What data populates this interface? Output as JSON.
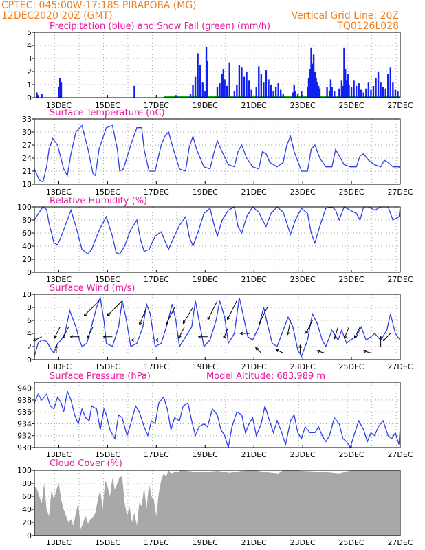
{
  "header": {
    "line1": "CPTEC:   045:00W-17:18S   PIRAPORA (MG)",
    "line2": "12DEC2020 20Z (GMT)",
    "right1": "Vertical Grid Line: 20Z",
    "right2": "TQ0126L028"
  },
  "colors": {
    "header": "#f08020",
    "title": "#e6199c",
    "line": "#2a3ee8",
    "rain": "#1020f0",
    "snow": "#10b010",
    "cloud": "#a8a8a8",
    "grid": "#aaaaaa"
  },
  "dates": [
    "13DEC",
    "15DEC",
    "17DEC",
    "19DEC",
    "21DEC",
    "23DEC",
    "25DEC",
    "27DEC"
  ],
  "chart_data": [
    {
      "type": "bar",
      "title": "Precipitation (blue) and Snow Fall (green) (mm/h)",
      "x_range_days": [
        12.0,
        27.0
      ],
      "ylim": [
        0,
        5
      ],
      "yticks": [
        0,
        1,
        2,
        3,
        4,
        5
      ],
      "series": [
        {
          "name": "Precipitation",
          "x": [
            12.1,
            12.15,
            12.3,
            13.0,
            13.05,
            13.1,
            16.1,
            17.8,
            18.4,
            18.5,
            18.6,
            18.7,
            18.8,
            18.9,
            19.0,
            19.05,
            19.1,
            19.5,
            19.6,
            19.7,
            19.75,
            19.8,
            19.9,
            20.0,
            20.2,
            20.3,
            20.4,
            20.5,
            20.6,
            20.7,
            20.8,
            20.9,
            21.1,
            21.2,
            21.3,
            21.4,
            21.5,
            21.6,
            21.7,
            21.8,
            21.9,
            22.0,
            22.1,
            22.2,
            22.6,
            22.65,
            22.7,
            22.8,
            22.95,
            23.2,
            23.25,
            23.3,
            23.35,
            23.4,
            23.45,
            23.5,
            23.55,
            23.6,
            23.65,
            23.7,
            24.0,
            24.1,
            24.15,
            24.2,
            24.3,
            24.5,
            24.6,
            24.65,
            24.7,
            24.75,
            24.8,
            24.85,
            24.9,
            25.0,
            25.1,
            25.2,
            25.3,
            25.4,
            25.5,
            25.6,
            25.7,
            25.8,
            25.9,
            26.0,
            26.1,
            26.2,
            26.3,
            26.4,
            26.5,
            26.6,
            26.7,
            26.8,
            26.9
          ],
          "values": [
            0.4,
            0.2,
            0.3,
            0.8,
            1.5,
            1.2,
            0.9,
            0.2,
            0.3,
            1.0,
            1.6,
            3.4,
            2.5,
            1.2,
            0.5,
            3.9,
            2.8,
            0.8,
            1.1,
            1.8,
            2.2,
            1.4,
            0.9,
            2.7,
            0.5,
            1.0,
            2.5,
            2.3,
            1.6,
            2.0,
            1.3,
            0.6,
            0.8,
            2.4,
            1.8,
            1.2,
            2.1,
            1.4,
            1.0,
            0.5,
            0.8,
            1.1,
            0.6,
            0.3,
            0.4,
            1.0,
            0.5,
            0.3,
            0.5,
            0.8,
            1.5,
            2.2,
            3.8,
            2.6,
            3.3,
            2.0,
            1.5,
            1.2,
            0.9,
            0.7,
            0.8,
            0.5,
            1.4,
            0.8,
            0.5,
            0.7,
            1.3,
            0.9,
            3.8,
            2.2,
            1.3,
            1.8,
            1.0,
            0.8,
            1.3,
            0.9,
            1.1,
            0.6,
            0.4,
            0.7,
            1.2,
            0.6,
            0.9,
            1.5,
            2.0,
            1.2,
            0.8,
            0.7,
            1.8,
            2.3,
            1.2,
            0.6,
            0.5
          ]
        },
        {
          "name": "Snow Fall",
          "x": [],
          "values": []
        }
      ]
    },
    {
      "type": "line",
      "title": "Surface Temperature (nC)",
      "ylim": [
        18,
        33
      ],
      "yticks": [
        18,
        21,
        24,
        27,
        30,
        33
      ],
      "x": [
        12.0,
        12.2,
        12.35,
        12.5,
        12.6,
        12.75,
        12.95,
        13.2,
        13.35,
        13.5,
        13.7,
        13.95,
        14.2,
        14.4,
        14.5,
        14.65,
        14.95,
        15.2,
        15.4,
        15.5,
        15.65,
        15.95,
        16.2,
        16.4,
        16.5,
        16.7,
        16.95,
        17.2,
        17.35,
        17.5,
        17.7,
        17.95,
        18.2,
        18.35,
        18.5,
        18.65,
        18.95,
        19.2,
        19.35,
        19.5,
        19.65,
        19.95,
        20.2,
        20.35,
        20.5,
        20.7,
        20.95,
        21.2,
        21.35,
        21.5,
        21.65,
        21.95,
        22.2,
        22.35,
        22.5,
        22.65,
        22.95,
        23.2,
        23.35,
        23.5,
        23.7,
        23.95,
        24.2,
        24.35,
        24.5,
        24.7,
        24.95,
        25.2,
        25.35,
        25.5,
        25.7,
        25.95,
        26.2,
        26.35,
        26.5,
        26.7,
        26.95,
        27.0
      ],
      "values": [
        21.5,
        19.0,
        18.5,
        22.0,
        26.0,
        28.5,
        27.0,
        21.5,
        20.0,
        25.0,
        30.0,
        31.5,
        26.0,
        20.5,
        20.0,
        26.0,
        31.0,
        31.5,
        26.0,
        21.0,
        21.5,
        27.0,
        31.0,
        31.0,
        26.0,
        21.0,
        21.0,
        27.0,
        29.0,
        30.0,
        26.0,
        21.5,
        21.0,
        26.5,
        29.0,
        26.0,
        22.0,
        21.5,
        25.0,
        28.0,
        26.0,
        22.5,
        22.0,
        25.5,
        27.0,
        24.0,
        22.0,
        21.5,
        25.5,
        25.0,
        23.0,
        22.0,
        23.0,
        27.0,
        29.0,
        25.5,
        21.0,
        21.0,
        26.0,
        27.0,
        24.0,
        22.0,
        22.0,
        26.0,
        24.5,
        22.5,
        22.0,
        22.0,
        24.5,
        25.0,
        23.5,
        22.5,
        22.0,
        23.5,
        23.0,
        22.0,
        22.0,
        21.5
      ]
    },
    {
      "type": "line",
      "title": "Relative Humidity (%)",
      "ylim": [
        0,
        100
      ],
      "yticks": [
        0,
        20,
        40,
        60,
        80,
        100
      ],
      "x": [
        12.0,
        12.2,
        12.35,
        12.5,
        12.6,
        12.8,
        12.95,
        13.1,
        13.3,
        13.5,
        13.7,
        13.95,
        14.2,
        14.35,
        14.5,
        14.7,
        14.95,
        15.2,
        15.35,
        15.5,
        15.7,
        15.95,
        16.2,
        16.35,
        16.5,
        16.7,
        16.95,
        17.2,
        17.35,
        17.5,
        17.7,
        17.95,
        18.2,
        18.35,
        18.5,
        18.7,
        18.95,
        19.2,
        19.35,
        19.5,
        19.7,
        19.95,
        20.2,
        20.35,
        20.5,
        20.7,
        20.95,
        21.2,
        21.35,
        21.5,
        21.7,
        21.95,
        22.2,
        22.35,
        22.5,
        22.7,
        22.95,
        23.2,
        23.35,
        23.5,
        23.7,
        23.95,
        24.2,
        24.35,
        24.5,
        24.7,
        24.95,
        25.2,
        25.35,
        25.5,
        25.7,
        25.95,
        26.2,
        26.35,
        26.5,
        26.7,
        26.95,
        27.0
      ],
      "values": [
        80,
        92,
        100,
        96,
        75,
        45,
        42,
        55,
        75,
        95,
        70,
        35,
        28,
        35,
        50,
        68,
        85,
        55,
        30,
        28,
        40,
        65,
        80,
        50,
        32,
        35,
        55,
        62,
        48,
        35,
        52,
        72,
        85,
        55,
        40,
        60,
        90,
        98,
        75,
        55,
        80,
        95,
        100,
        70,
        60,
        85,
        100,
        92,
        80,
        70,
        90,
        100,
        92,
        75,
        58,
        80,
        98,
        90,
        60,
        45,
        70,
        98,
        100,
        95,
        80,
        100,
        95,
        90,
        80,
        100,
        100,
        95,
        100,
        100,
        100,
        80,
        85,
        100
      ]
    },
    {
      "type": "line",
      "title": "Surface Wind (m/s)",
      "ylim": [
        0,
        10
      ],
      "yticks": [
        0,
        2,
        4,
        6,
        8,
        10
      ],
      "x": [
        12.0,
        12.15,
        12.3,
        12.5,
        12.7,
        12.8,
        12.95,
        13.1,
        13.25,
        13.45,
        13.7,
        13.85,
        13.95,
        14.15,
        14.3,
        14.55,
        14.7,
        14.85,
        14.95,
        15.2,
        15.45,
        15.6,
        15.75,
        15.95,
        16.2,
        16.45,
        16.6,
        16.75,
        16.95,
        17.2,
        17.45,
        17.65,
        17.8,
        17.95,
        18.2,
        18.45,
        18.6,
        18.75,
        18.95,
        19.2,
        19.45,
        19.6,
        19.8,
        19.95,
        20.2,
        20.4,
        20.55,
        20.75,
        20.95,
        21.2,
        21.4,
        21.55,
        21.75,
        21.95,
        22.2,
        22.4,
        22.6,
        22.8,
        22.95,
        23.2,
        23.4,
        23.6,
        23.8,
        23.95,
        24.2,
        24.45,
        24.6,
        24.8,
        24.95,
        25.2,
        25.4,
        25.6,
        25.8,
        25.95,
        26.2,
        26.45,
        26.6,
        26.8,
        27.0
      ],
      "values": [
        0.5,
        2.5,
        3.0,
        2.8,
        1.5,
        1.0,
        2.5,
        3.0,
        4.0,
        7.5,
        5.0,
        3.0,
        2.0,
        2.5,
        4.5,
        8.0,
        9.5,
        6.0,
        2.5,
        2.0,
        5.0,
        9.0,
        6.5,
        2.0,
        2.5,
        5.0,
        8.5,
        7.0,
        2.0,
        2.5,
        5.5,
        8.5,
        6.0,
        2.0,
        3.5,
        5.0,
        9.0,
        6.0,
        2.0,
        3.0,
        6.0,
        9.0,
        6.5,
        2.5,
        4.0,
        9.5,
        7.0,
        3.5,
        3.0,
        5.0,
        8.0,
        5.5,
        2.5,
        2.0,
        4.5,
        6.5,
        5.0,
        1.5,
        0.5,
        3.0,
        7.0,
        5.5,
        3.0,
        2.0,
        4.5,
        3.0,
        4.5,
        2.5,
        3.0,
        3.5,
        5.0,
        3.0,
        3.5,
        4.0,
        3.0,
        4.5,
        7.0,
        4.0,
        3.0
      ],
      "arrows": {
        "x": [
          12.3,
          12.9,
          13.05,
          13.4,
          13.85,
          14.4,
          14.65,
          15.2,
          15.6,
          16.3,
          16.6,
          17.3,
          17.75,
          18.15,
          18.5,
          19.1,
          19.5,
          19.95,
          20.3,
          20.85,
          21.3,
          21.55,
          22.2,
          22.5,
          22.9,
          23.4,
          23.9,
          24.45,
          24.9,
          25.35,
          25.8,
          26.2,
          26.6
        ],
        "u": [
          -1,
          0,
          -0.5,
          -0.5,
          -1,
          -0.5,
          -1,
          -1,
          -1,
          -1,
          -0.4,
          -1,
          -0.5,
          -0.5,
          -0.6,
          -1,
          -0.5,
          -0.4,
          -0.5,
          -1,
          -1,
          -0.5,
          -1,
          -0.2,
          0,
          -0.5,
          -1,
          -0.3,
          -0.4,
          -0.5,
          -1,
          0,
          -0.5
        ],
        "v": [
          -0.5,
          1,
          -1,
          -1,
          0,
          -1,
          -1,
          0,
          -1,
          0,
          -1,
          0,
          -1,
          -1,
          -1,
          0,
          -1,
          -1,
          -1,
          0,
          1,
          -1,
          0.5,
          -1,
          1,
          -1,
          0.3,
          -1,
          -1,
          -1,
          0.3,
          1,
          -0.5
        ],
        "speed": [
          2.5,
          2.0,
          4.0,
          4.0,
          2.5,
          4.0,
          8.0,
          2.5,
          8.0,
          2.0,
          7.0,
          2.0,
          7.0,
          4.0,
          7.0,
          2.5,
          8.0,
          4.0,
          8.0,
          3.0,
          2.0,
          7.0,
          2.0,
          5.0,
          2.0,
          5.0,
          2.0,
          4.0,
          4.0,
          4.0,
          2.0,
          3.0,
          3.0
        ]
      }
    },
    {
      "type": "line",
      "title": "Surface Pressure (hPa)",
      "annotation": "Model Altitude: 683.989 m",
      "ylim": [
        930,
        941
      ],
      "yticks": [
        930,
        932,
        934,
        936,
        938,
        940
      ],
      "x": [
        12.0,
        12.15,
        12.3,
        12.5,
        12.65,
        12.8,
        12.95,
        13.1,
        13.2,
        13.35,
        13.5,
        13.65,
        13.8,
        13.95,
        14.1,
        14.25,
        14.35,
        14.55,
        14.7,
        14.85,
        14.95,
        15.1,
        15.3,
        15.45,
        15.6,
        15.8,
        15.95,
        16.15,
        16.3,
        16.5,
        16.65,
        16.8,
        16.95,
        17.1,
        17.3,
        17.45,
        17.6,
        17.75,
        17.95,
        18.1,
        18.3,
        18.45,
        18.6,
        18.75,
        18.95,
        19.1,
        19.3,
        19.5,
        19.65,
        19.8,
        19.95,
        20.1,
        20.3,
        20.5,
        20.65,
        20.8,
        20.95,
        21.1,
        21.3,
        21.45,
        21.6,
        21.8,
        21.95,
        22.1,
        22.3,
        22.5,
        22.65,
        22.8,
        22.95,
        23.1,
        23.3,
        23.5,
        23.65,
        23.8,
        23.95,
        24.1,
        24.3,
        24.5,
        24.65,
        24.8,
        24.95,
        25.1,
        25.3,
        25.5,
        25.65,
        25.8,
        25.95,
        26.1,
        26.3,
        26.5,
        26.65,
        26.8,
        26.95,
        27.0
      ],
      "values": [
        937.5,
        939.0,
        938.0,
        939.0,
        937.0,
        936.5,
        938.5,
        937.5,
        936.0,
        939.5,
        938.0,
        935.5,
        934.0,
        936.5,
        935.0,
        934.5,
        937.0,
        936.5,
        933.0,
        936.5,
        935.5,
        933.0,
        931.5,
        935.5,
        935.0,
        932.0,
        934.0,
        937.0,
        936.0,
        933.5,
        932.0,
        934.5,
        934.0,
        937.5,
        938.5,
        936.5,
        933.0,
        935.0,
        934.5,
        937.0,
        937.5,
        934.5,
        932.0,
        933.5,
        934.0,
        933.5,
        936.5,
        935.5,
        933.0,
        932.0,
        930.0,
        933.5,
        936.0,
        935.5,
        932.5,
        934.0,
        935.0,
        932.0,
        934.0,
        937.0,
        935.0,
        932.5,
        934.5,
        933.0,
        930.5,
        934.5,
        935.5,
        932.5,
        931.5,
        933.5,
        932.5,
        932.5,
        933.5,
        932.0,
        931.0,
        932.0,
        935.0,
        934.0,
        931.5,
        931.0,
        930.0,
        932.0,
        934.5,
        933.0,
        931.0,
        932.5,
        932.0,
        933.5,
        934.5,
        932.0,
        931.5,
        932.5,
        930.5,
        933.5
      ]
    },
    {
      "type": "area",
      "title": "Cloud Cover (%)",
      "ylim": [
        0,
        100
      ],
      "yticks": [
        0,
        20,
        40,
        60,
        80,
        100
      ],
      "x": [
        12.0,
        12.1,
        12.2,
        12.3,
        12.4,
        12.5,
        12.6,
        12.7,
        12.8,
        12.9,
        13.0,
        13.1,
        13.2,
        13.3,
        13.4,
        13.5,
        13.6,
        13.7,
        13.8,
        13.9,
        14.0,
        14.1,
        14.2,
        14.3,
        14.4,
        14.5,
        14.6,
        14.7,
        14.8,
        14.9,
        15.0,
        15.1,
        15.2,
        15.3,
        15.4,
        15.5,
        15.6,
        15.7,
        15.8,
        15.9,
        16.0,
        16.1,
        16.2,
        16.3,
        16.4,
        16.5,
        16.6,
        16.7,
        16.8,
        16.9,
        17.0,
        17.1,
        17.2,
        17.3,
        17.4,
        17.5,
        17.6,
        17.7,
        17.8,
        17.9,
        18.0,
        18.5,
        19.0,
        19.5,
        20.0,
        20.5,
        21.0,
        21.5,
        22.0,
        22.2,
        22.5,
        23.0,
        23.5,
        24.0,
        24.5,
        25.0,
        25.5,
        26.0,
        26.5,
        27.0
      ],
      "values": [
        75,
        72,
        60,
        50,
        80,
        40,
        30,
        70,
        55,
        70,
        80,
        55,
        40,
        30,
        20,
        25,
        15,
        35,
        50,
        10,
        20,
        30,
        18,
        25,
        28,
        35,
        55,
        70,
        40,
        85,
        75,
        60,
        88,
        70,
        80,
        90,
        90,
        50,
        30,
        45,
        20,
        35,
        15,
        50,
        45,
        75,
        40,
        80,
        60,
        55,
        30,
        65,
        85,
        95,
        90,
        100,
        95,
        96,
        98,
        97,
        100,
        98,
        97,
        99,
        96,
        99,
        100,
        97,
        95,
        100,
        100,
        99,
        98,
        97,
        95,
        100,
        100,
        100,
        100,
        100
      ]
    }
  ]
}
